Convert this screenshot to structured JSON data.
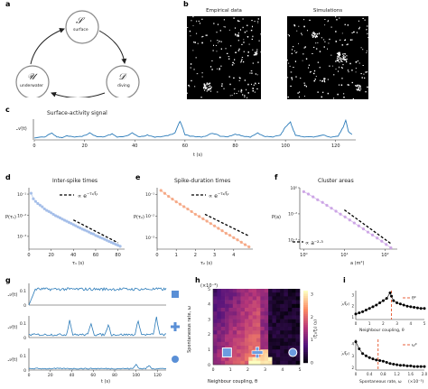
{
  "panels": {
    "a": "a",
    "b": "b",
    "c": "c",
    "d": "d",
    "e": "e",
    "f": "f",
    "g": "g",
    "h": "h",
    "i": "i"
  },
  "states": {
    "s": {
      "sym": "𝒮",
      "name": "surface"
    },
    "d": {
      "sym": "𝒟",
      "name": "diving"
    },
    "u": {
      "sym": "𝒰",
      "name": "underwater"
    }
  },
  "panel_b": {
    "left": "Empirical data",
    "right": "Simulations"
  },
  "panel_c": {
    "title": "Surface-activity signal",
    "ylabel": "𝒜(t)",
    "xlabel": "t (s)",
    "xticks": [
      "0",
      "20",
      "40",
      "60",
      "80",
      "100",
      "120"
    ]
  },
  "panel_d": {
    "title": "Inter-spike times",
    "ylabel": "P(τ₁)",
    "xlabel": "τ₁ (s)",
    "xticks": [
      "0",
      "20",
      "40",
      "60",
      "80"
    ],
    "yticks": [
      "10⁻¹",
      "10⁻²",
      "10⁻³"
    ],
    "legend": "∝ e^{-τ₁/ξ₁}",
    "legend_main": "∝ e",
    "legend_exp": "−τ₁/ξ₁"
  },
  "panel_e": {
    "title": "Spike-duration times",
    "ylabel": "P(τ₂)",
    "xlabel": "τ₂ (s)",
    "xticks": [
      "0",
      "1",
      "2",
      "3",
      "4"
    ],
    "yticks": [
      "10⁻¹",
      "10⁻²",
      "10⁻³"
    ],
    "legend_main": "∝ e",
    "legend_exp": "−τ₂/ξ₂"
  },
  "panel_f": {
    "title": "Cluster areas",
    "ylabel": "P(a)",
    "xlabel": "a (m²)",
    "xticks": [
      "10⁰",
      "10¹",
      "10²"
    ],
    "yticks": [
      "10⁰",
      "10⁻²",
      "10⁻⁴"
    ],
    "legend": "∝ a⁻²·³"
  },
  "panel_g": {
    "ylabel": "𝒜(t)",
    "xlabel": "t (s)",
    "xticks": [
      "0",
      "20",
      "40",
      "60",
      "80",
      "100",
      "120"
    ],
    "rows": [
      {
        "yticks": [
          "0.1",
          "0"
        ],
        "marker": "square"
      },
      {
        "yticks": [
          "0.1",
          "0"
        ],
        "marker": "plus"
      },
      {
        "yticks": [
          "0.1",
          "0"
        ],
        "marker": "circle"
      }
    ]
  },
  "panel_h": {
    "scale": "(×10⁻³)",
    "ylabel": "Spontaneous rate, ω",
    "xlabel": "Neighbour coupling, θ",
    "xticks": [
      "0",
      "1",
      "2",
      "3",
      "4",
      "5"
    ],
    "yticks": [
      "5",
      "4",
      "3",
      "2",
      "1",
      "0"
    ],
    "cbar_label": "⟨ξ₁/ξ₂⟩ (s)",
    "cbar_ticks": [
      "3",
      "2",
      "1",
      "0"
    ]
  },
  "panel_i": {
    "top": {
      "ylabel": "⟨ξ₁/ξ₂⟩",
      "xlabel": "Neighbour coupling, θ",
      "xticks": [
        "0",
        "1",
        "2",
        "3",
        "4",
        "5"
      ],
      "yticks": [
        "3",
        "2",
        "1"
      ],
      "legend": "θ*"
    },
    "bottom": {
      "ylabel": "⟨ξ₁/ξ₂⟩",
      "xlabel": "Spontaneous rate, ω",
      "xticks": [
        "0",
        "0.4",
        "0.8",
        "1.2",
        "1.6",
        "2.0"
      ],
      "yticks": [
        "4",
        "3",
        "2"
      ],
      "legend": "ω*",
      "scale": "(×10⁻³)"
    }
  },
  "colors": {
    "blue": "#2b7bb9",
    "lightblue": "#9bb7e6",
    "orange": "#f4a07a",
    "purple": "#c79be3",
    "red": "#e8623c",
    "black": "#000000"
  },
  "chart_data": [
    {
      "id": "c",
      "type": "line",
      "title": "Surface-activity signal",
      "xlabel": "t (s)",
      "ylabel": "𝒜(t)",
      "xlim": [
        0,
        128
      ],
      "x": [
        0,
        4,
        7,
        9,
        11,
        13,
        16,
        19,
        22,
        25,
        28,
        31,
        33,
        36,
        39,
        42,
        45,
        48,
        51,
        54,
        56,
        58,
        59,
        60,
        62,
        65,
        68,
        71,
        74,
        77,
        80,
        83,
        86,
        89,
        92,
        95,
        98,
        100,
        102,
        103,
        104,
        106,
        109,
        112,
        115,
        118,
        121,
        123,
        124,
        125,
        127
      ],
      "y": [
        0.05,
        0.1,
        0.3,
        0.1,
        0.08,
        0.15,
        0.1,
        0.12,
        0.3,
        0.1,
        0.12,
        0.25,
        0.1,
        0.12,
        0.3,
        0.1,
        0.2,
        0.1,
        0.12,
        0.2,
        0.3,
        0.9,
        0.6,
        0.2,
        0.15,
        0.1,
        0.12,
        0.3,
        0.15,
        0.1,
        0.25,
        0.15,
        0.1,
        0.3,
        0.12,
        0.1,
        0.2,
        0.6,
        0.85,
        0.5,
        0.2,
        0.12,
        0.1,
        0.12,
        0.2,
        0.1,
        0.15,
        0.6,
        0.95,
        0.4,
        0.15
      ]
    },
    {
      "id": "d",
      "type": "scatter",
      "title": "Inter-spike times",
      "xlabel": "τ₁ (s)",
      "ylabel": "P(τ₁)",
      "log_y": true,
      "x": [
        2,
        4,
        6,
        8,
        10,
        12,
        14,
        16,
        18,
        20,
        22,
        24,
        26,
        28,
        30,
        32,
        34,
        36,
        38,
        40,
        42,
        44,
        46,
        48,
        50,
        52,
        54,
        56,
        58,
        60,
        62,
        64,
        66,
        68,
        70,
        72,
        74,
        76,
        78,
        80,
        82
      ],
      "y": [
        0.11,
        0.06,
        0.045,
        0.036,
        0.03,
        0.025,
        0.02,
        0.017,
        0.015,
        0.013,
        0.011,
        0.0095,
        0.0085,
        0.0075,
        0.0066,
        0.0058,
        0.0052,
        0.0046,
        0.0041,
        0.0036,
        0.0032,
        0.0028,
        0.0025,
        0.0022,
        0.002,
        0.0018,
        0.0016,
        0.0014,
        0.0013,
        0.0011,
        0.001,
        0.0009,
        0.00082,
        0.00073,
        0.00065,
        0.00058,
        0.00052,
        0.00047,
        0.00042,
        0.00038,
        0.00034
      ],
      "fit": {
        "label": "∝ e^{-τ₁/ξ₁}",
        "x": [
          40,
          80
        ],
        "y": [
          0.006,
          0.0005
        ]
      }
    },
    {
      "id": "e",
      "type": "scatter",
      "title": "Spike-duration times",
      "xlabel": "τ₂ (s)",
      "ylabel": "P(τ₂)",
      "log_y": true,
      "x": [
        0.2,
        0.4,
        0.6,
        0.8,
        1.0,
        1.2,
        1.4,
        1.6,
        1.8,
        2.0,
        2.2,
        2.4,
        2.6,
        2.8,
        3.0,
        3.2,
        3.4,
        3.6,
        3.8,
        4.0,
        4.2,
        4.4,
        4.6,
        4.8
      ],
      "y": [
        0.15,
        0.11,
        0.08,
        0.06,
        0.045,
        0.035,
        0.027,
        0.021,
        0.016,
        0.012,
        0.0095,
        0.0074,
        0.0058,
        0.0045,
        0.0035,
        0.0027,
        0.0021,
        0.0016,
        0.0013,
        0.001,
        0.0008,
        0.00062,
        0.00048,
        0.00038
      ],
      "fit": {
        "label": "∝ e^{-τ₂/ξ₂}",
        "x": [
          2.5,
          4.8
        ],
        "y": [
          0.012,
          0.0012
        ]
      }
    },
    {
      "id": "f",
      "type": "scatter",
      "title": "Cluster areas",
      "xlabel": "a (m²)",
      "ylabel": "P(a)",
      "log_x": true,
      "log_y": true,
      "x": [
        1,
        1.3,
        1.7,
        2.2,
        2.9,
        3.7,
        4.8,
        6.2,
        8,
        10.4,
        13.5,
        17.5,
        22.6,
        29.3,
        38,
        49,
        64,
        83,
        107,
        139
      ],
      "y": [
        0.5,
        0.33,
        0.2,
        0.12,
        0.075,
        0.045,
        0.027,
        0.016,
        0.0095,
        0.0058,
        0.0034,
        0.002,
        0.0012,
        0.0007,
        0.0004,
        0.00024,
        0.00014,
        8e-05,
        4.5e-05,
        2.5e-05
      ],
      "fit": {
        "label": "∝ a⁻²·³",
        "x": [
          10,
          140
        ],
        "y": [
          0.02,
          5.18e-05
        ]
      }
    },
    {
      "id": "i-top",
      "type": "line",
      "xlabel": "Neighbour coupling, θ",
      "ylabel": "⟨ξ₁/ξ₂⟩",
      "x": [
        0,
        0.25,
        0.5,
        0.75,
        1.0,
        1.25,
        1.5,
        1.75,
        2.0,
        2.25,
        2.5,
        2.6,
        2.75,
        3.0,
        3.25,
        3.5,
        3.75,
        4.0,
        4.25,
        4.5,
        4.75,
        5.0
      ],
      "y": [
        1.3,
        1.4,
        1.5,
        1.65,
        1.8,
        1.95,
        2.1,
        2.3,
        2.5,
        2.7,
        3.2,
        2.9,
        2.5,
        2.3,
        2.2,
        2.1,
        2.0,
        1.95,
        1.9,
        1.85,
        1.8,
        1.8
      ],
      "vline": 2.6
    },
    {
      "id": "i-bottom",
      "type": "line",
      "xlabel": "Spontaneous rate, ω (×10⁻³)",
      "ylabel": "⟨ξ₁/ξ₂⟩",
      "x": [
        0,
        0.1,
        0.2,
        0.3,
        0.4,
        0.5,
        0.6,
        0.7,
        0.8,
        0.9,
        1.0,
        1.1,
        1.2,
        1.3,
        1.4,
        1.5,
        1.6,
        1.7,
        1.8,
        1.9,
        2.0
      ],
      "y": [
        4.2,
        3.6,
        3.2,
        3.0,
        2.85,
        2.75,
        2.65,
        2.6,
        2.55,
        2.45,
        2.35,
        2.3,
        2.25,
        2.2,
        2.2,
        2.15,
        2.15,
        2.1,
        2.1,
        2.1,
        2.1
      ],
      "vline": 0.65
    }
  ]
}
